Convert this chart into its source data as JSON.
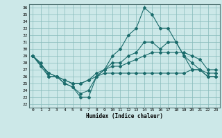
{
  "xlabel": "Humidex (Indice chaleur)",
  "bg_color": "#cce8e8",
  "grid_color": "#88bbbb",
  "line_color": "#1a6b6b",
  "xlim": [
    -0.5,
    23.5
  ],
  "ylim": [
    21.5,
    36.5
  ],
  "xticks": [
    0,
    1,
    2,
    3,
    4,
    5,
    6,
    7,
    8,
    9,
    10,
    11,
    12,
    13,
    14,
    15,
    16,
    17,
    18,
    19,
    20,
    21,
    22,
    23
  ],
  "yticks": [
    22,
    23,
    24,
    25,
    26,
    27,
    28,
    29,
    30,
    31,
    32,
    33,
    34,
    35,
    36
  ],
  "line1_x": [
    0,
    1,
    2,
    3,
    4,
    5,
    6,
    7,
    8,
    9,
    10,
    11,
    12,
    13,
    14,
    15,
    16,
    17,
    18,
    19,
    20,
    21,
    22,
    23
  ],
  "line1_y": [
    29,
    28,
    26,
    26,
    25,
    24.5,
    23,
    23,
    26,
    27,
    29,
    30,
    32,
    33,
    36,
    35,
    33,
    33,
    31,
    29,
    27,
    27,
    26,
    26
  ],
  "line2_x": [
    0,
    1,
    2,
    3,
    4,
    5,
    6,
    7,
    8,
    9,
    10,
    11,
    12,
    13,
    14,
    15,
    16,
    17,
    18,
    19,
    20,
    21,
    22,
    23
  ],
  "line2_y": [
    29,
    27.5,
    26,
    26,
    25,
    24.5,
    23.5,
    24,
    26,
    27,
    28,
    28,
    29,
    29.5,
    31,
    31,
    30,
    31,
    31,
    29,
    28,
    27,
    26,
    26
  ],
  "line3_x": [
    0,
    2,
    3,
    4,
    5,
    6,
    7,
    8,
    9,
    10,
    11,
    12,
    13,
    14,
    15,
    16,
    17,
    18,
    19,
    20,
    21,
    22,
    23
  ],
  "line3_y": [
    29,
    26.5,
    26,
    25.5,
    25,
    25,
    25.5,
    26.5,
    27,
    27.5,
    27.5,
    28,
    28.5,
    29,
    29.5,
    29.5,
    29.5,
    29.5,
    29.5,
    29,
    28.5,
    27,
    27
  ],
  "line4_x": [
    0,
    2,
    3,
    4,
    5,
    6,
    7,
    8,
    9,
    10,
    11,
    12,
    13,
    14,
    15,
    16,
    17,
    18,
    19,
    20,
    21,
    22,
    23
  ],
  "line4_y": [
    29,
    26.5,
    26,
    25.5,
    25,
    25,
    25.5,
    26,
    26.5,
    26.5,
    26.5,
    26.5,
    26.5,
    26.5,
    26.5,
    26.5,
    26.5,
    26.5,
    26.5,
    27,
    27,
    26.5,
    26.5
  ]
}
